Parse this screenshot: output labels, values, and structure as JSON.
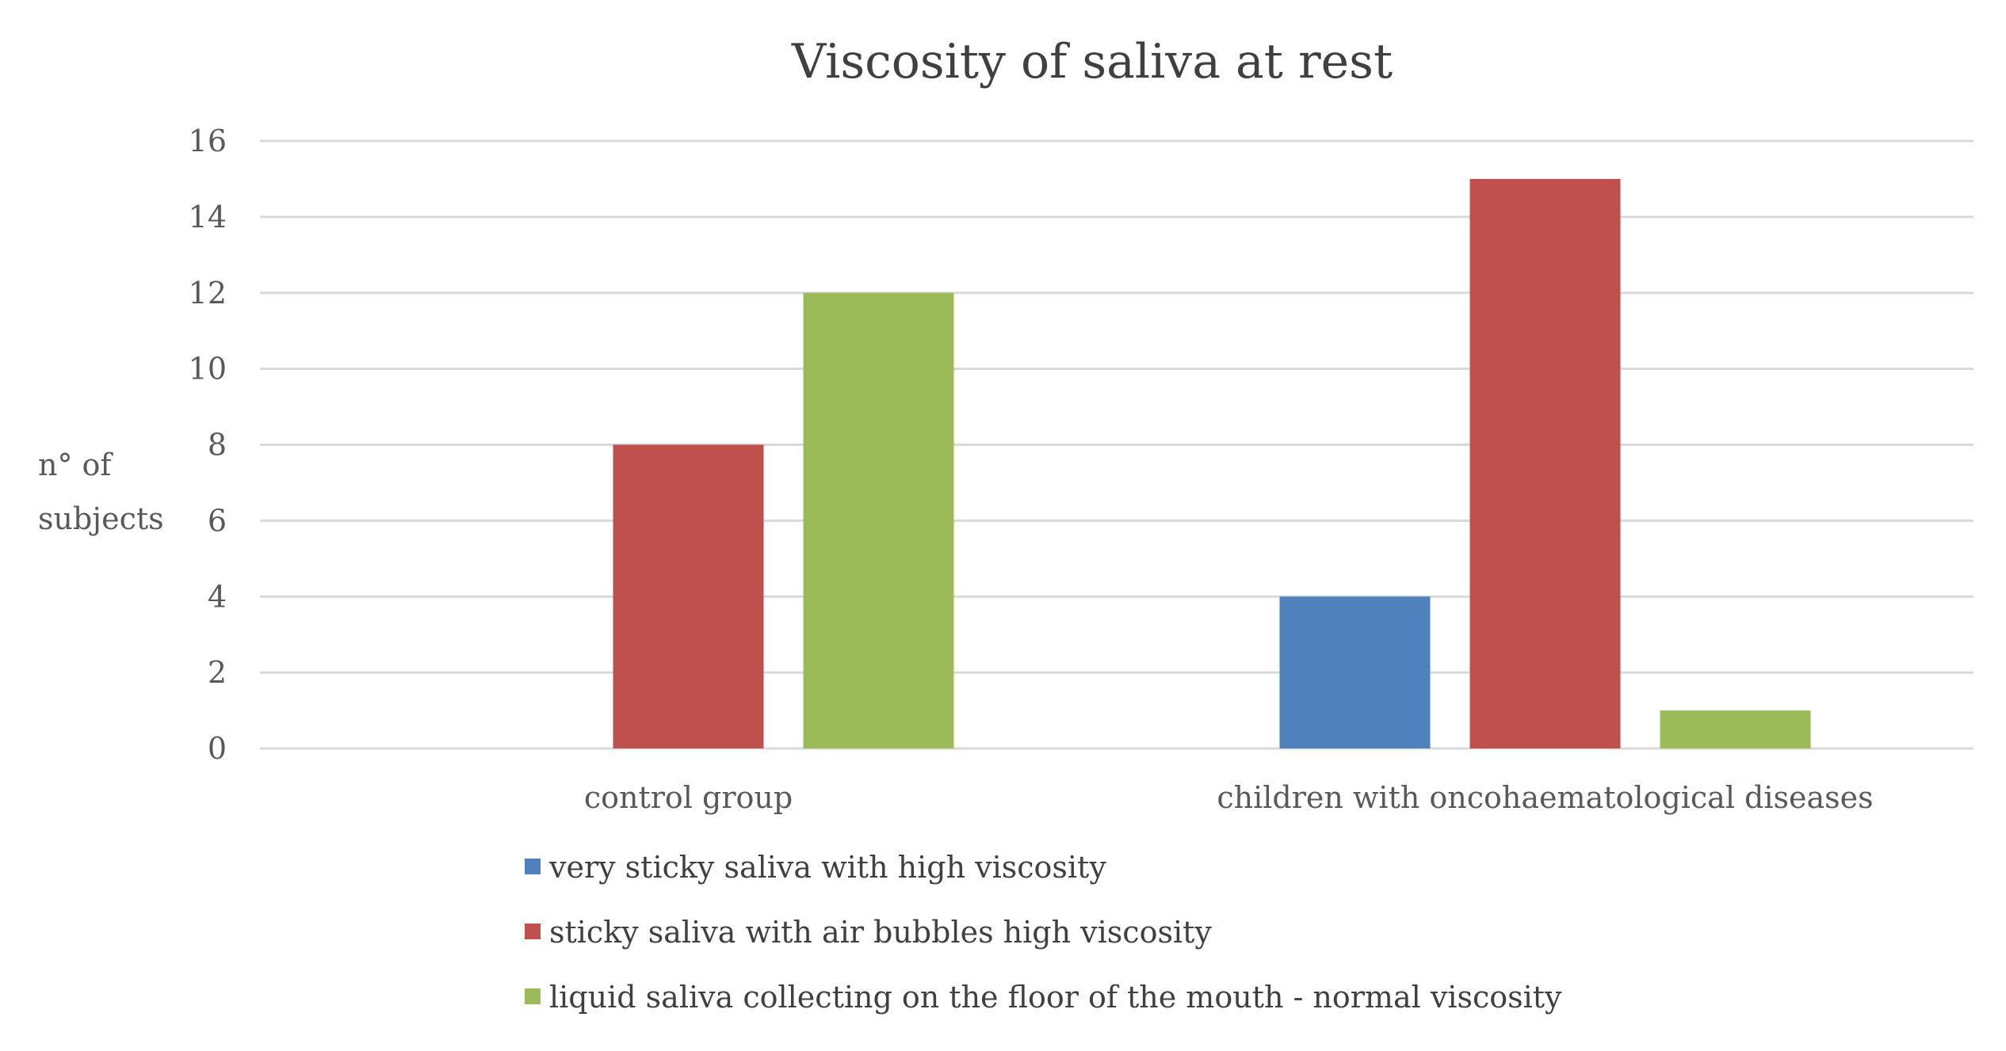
{
  "chart_data": {
    "type": "bar",
    "title": "Viscosity of saliva at rest",
    "ylabel": [
      "n° of",
      "subjects"
    ],
    "xlabel": "",
    "categories": [
      "control group",
      "children with oncohaematological diseases"
    ],
    "series": [
      {
        "name": "very sticky saliva with high viscosity",
        "values": [
          0,
          4
        ],
        "color": "#4f81bd"
      },
      {
        "name": "sticky saliva with air bubbles high viscosity",
        "values": [
          8,
          15
        ],
        "color": "#c0504d"
      },
      {
        "name": "liquid saliva collecting on the floor of the mouth - normal viscosity",
        "values": [
          12,
          1
        ],
        "color": "#9bbb59"
      }
    ],
    "ylim": [
      0,
      16
    ],
    "yticks": [
      "0",
      "2",
      "4",
      "6",
      "8",
      "10",
      "12",
      "14",
      "16"
    ],
    "grid": true,
    "legend_position": "bottom"
  }
}
